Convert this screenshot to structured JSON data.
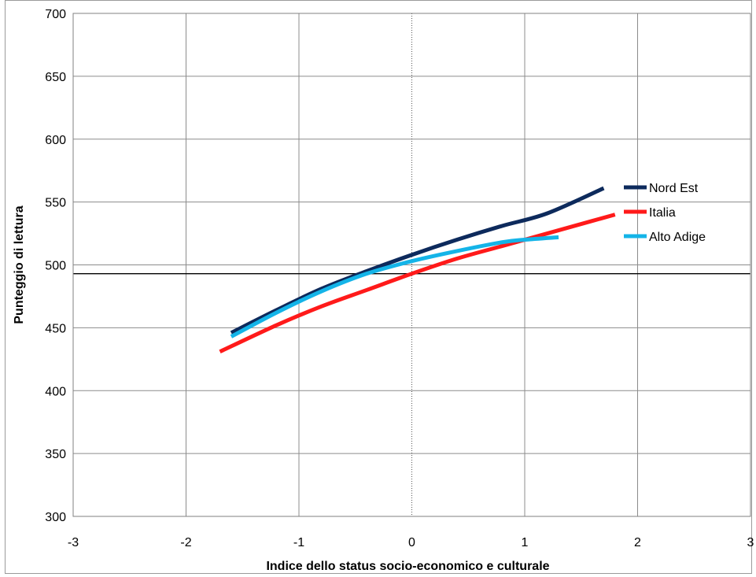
{
  "chart_data": {
    "type": "line",
    "xlabel": "Indice dello status socio-economico e culturale",
    "ylabel": "Punteggio di lettura",
    "xlim": [
      -3,
      3
    ],
    "ylim": [
      300,
      700
    ],
    "xticks": [
      -3,
      -2,
      -1,
      0,
      1,
      2,
      3
    ],
    "yticks": [
      300,
      350,
      400,
      450,
      500,
      550,
      600,
      650,
      700
    ],
    "grid": true,
    "legend_position": "right",
    "reference_lines": {
      "horizontal_y": 493,
      "vertical_x": 0
    },
    "series": [
      {
        "name": "Nord Est",
        "color": "#0d2a5c",
        "x": [
          -1.6,
          -1.2,
          -0.8,
          -0.4,
          0,
          0.4,
          0.8,
          1.2,
          1.7
        ],
        "y": [
          446,
          464,
          481,
          495,
          508,
          520,
          531,
          541,
          561
        ]
      },
      {
        "name": "Italia",
        "color": "#ff1a1a",
        "x": [
          -1.7,
          -1.2,
          -0.8,
          -0.4,
          0,
          0.4,
          0.8,
          1.2,
          1.6,
          1.8
        ],
        "y": [
          431,
          452,
          467,
          480,
          493,
          505,
          515,
          525,
          535,
          540
        ]
      },
      {
        "name": "Alto Adige",
        "color": "#14b4e8",
        "x": [
          -1.6,
          -1.2,
          -0.8,
          -0.4,
          0,
          0.4,
          0.8,
          1.0,
          1.3
        ],
        "y": [
          443,
          462,
          479,
          493,
          503,
          511,
          518,
          520,
          522
        ]
      }
    ]
  }
}
